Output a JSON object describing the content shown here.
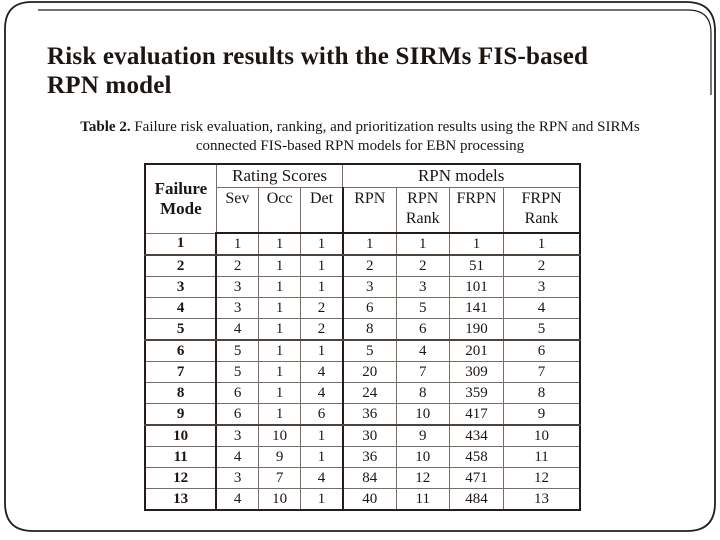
{
  "slide": {
    "title_line1": "Risk evaluation results with the SIRMs FIS-based",
    "title_line2": "RPN model"
  },
  "caption": {
    "label": "Table 2.",
    "line1_rest": " Failure risk evaluation, ranking, and prioritization results using the RPN and SIRMs",
    "line2": "connected FIS-based RPN models for EBN processing"
  },
  "table": {
    "headers": {
      "failure_mode": "Failure Mode",
      "rating_scores": "Rating Scores",
      "rpn_models": "RPN models",
      "sev": "Sev",
      "occ": "Occ",
      "det": "Det",
      "rpn": "RPN",
      "rpn_rank": "RPN Rank",
      "frpn": "FRPN",
      "frpn_rank": "FRPN Rank"
    },
    "rows": [
      [
        "1",
        "1",
        "1",
        "1",
        "1",
        "1",
        "1",
        "1"
      ],
      [
        "2",
        "2",
        "1",
        "1",
        "2",
        "2",
        "51",
        "2"
      ],
      [
        "3",
        "3",
        "1",
        "1",
        "3",
        "3",
        "101",
        "3"
      ],
      [
        "4",
        "3",
        "1",
        "2",
        "6",
        "5",
        "141",
        "4"
      ],
      [
        "5",
        "4",
        "1",
        "2",
        "8",
        "6",
        "190",
        "5"
      ],
      [
        "6",
        "5",
        "1",
        "1",
        "5",
        "4",
        "201",
        "6"
      ],
      [
        "7",
        "5",
        "1",
        "4",
        "20",
        "7",
        "309",
        "7"
      ],
      [
        "8",
        "6",
        "1",
        "4",
        "24",
        "8",
        "359",
        "8"
      ],
      [
        "9",
        "6",
        "1",
        "6",
        "36",
        "10",
        "417",
        "9"
      ],
      [
        "10",
        "3",
        "10",
        "1",
        "30",
        "9",
        "434",
        "10"
      ],
      [
        "11",
        "4",
        "9",
        "1",
        "36",
        "10",
        "458",
        "11"
      ],
      [
        "12",
        "3",
        "7",
        "4",
        "84",
        "12",
        "471",
        "12"
      ],
      [
        "13",
        "4",
        "10",
        "1",
        "40",
        "11",
        "484",
        "13"
      ]
    ]
  },
  "colors": {
    "background": "#ffffff",
    "text": "#1c1613",
    "border_heavy": "#241d19",
    "grid_light": "#7a6e64"
  }
}
